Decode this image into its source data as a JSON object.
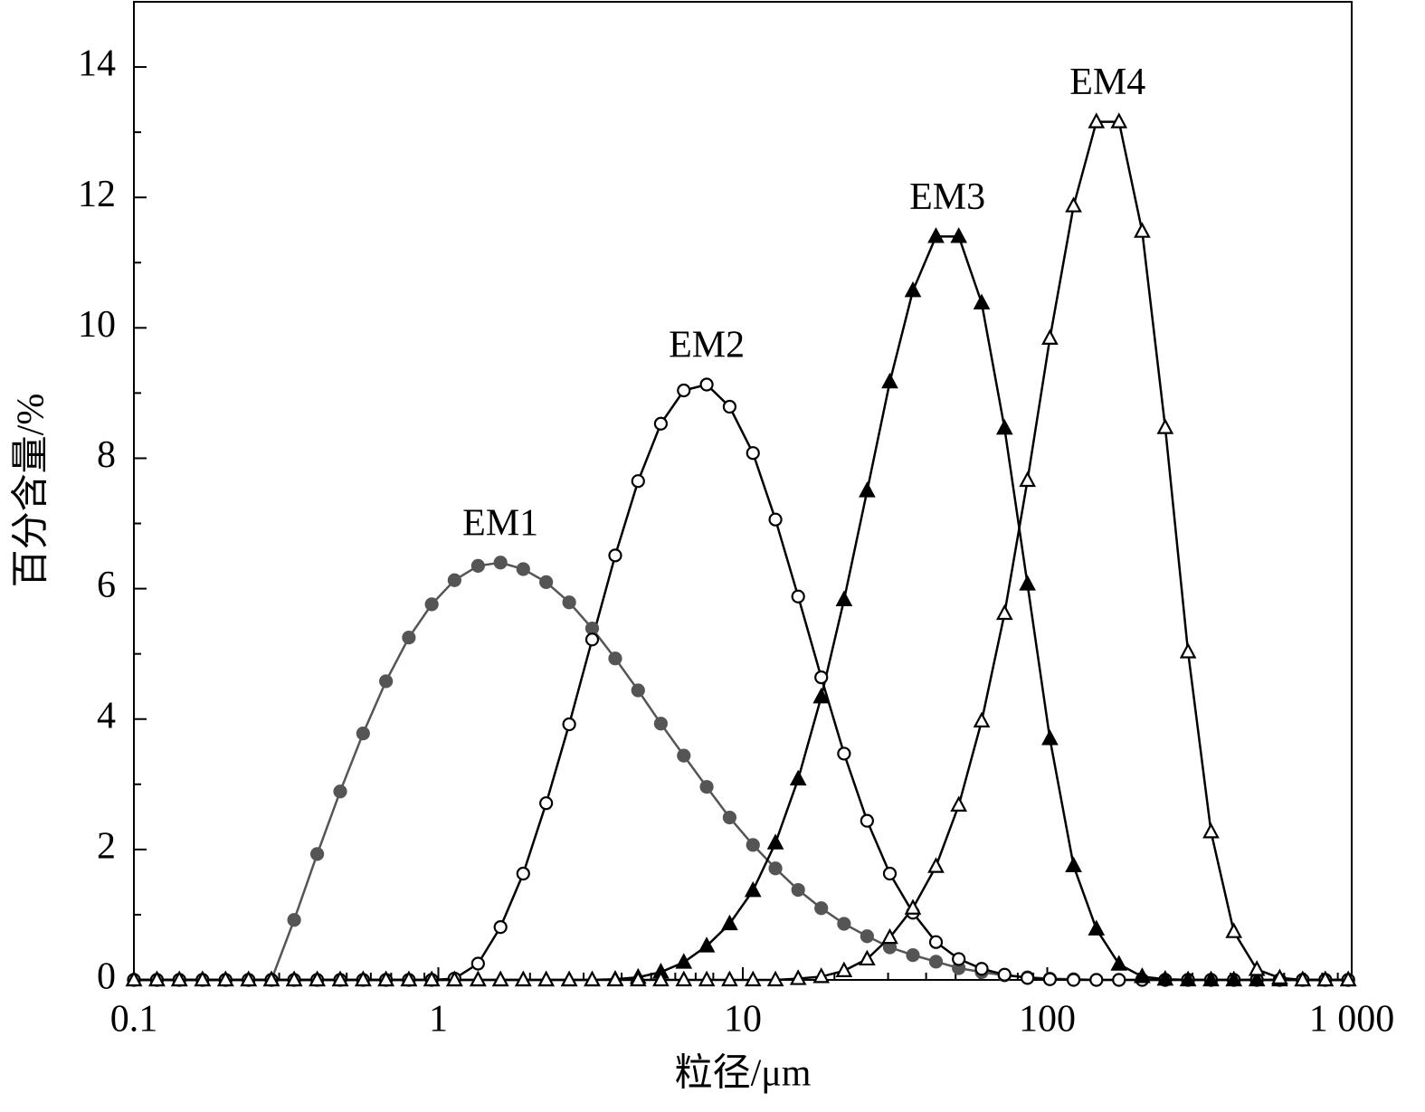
{
  "chart_data": {
    "type": "line",
    "x_label": "粒径/μm",
    "y_label": "百分含量/%",
    "x": [
      0.1,
      0.119,
      0.141,
      0.168,
      0.2,
      0.238,
      0.283,
      0.336,
      0.4,
      0.476,
      0.566,
      0.673,
      0.8,
      0.951,
      1.13,
      1.35,
      1.6,
      1.9,
      2.26,
      2.69,
      3.2,
      3.81,
      4.53,
      5.38,
      6.4,
      7.61,
      9.05,
      10.8,
      12.8,
      15.2,
      18.1,
      21.5,
      25.6,
      30.4,
      36.2,
      43.1,
      51.2,
      60.9,
      72.4,
      86.1,
      102,
      122,
      145,
      172,
      205,
      244,
      290,
      345,
      410,
      488,
      580,
      690,
      819,
      974
    ],
    "x_log": true,
    "xlim": [
      0.1,
      1000
    ],
    "xticks": [
      0.1,
      1,
      10,
      100,
      {
        "value": 1000,
        "label": "1 000"
      }
    ],
    "ylim": [
      0,
      15
    ],
    "yticks": [
      0,
      2,
      4,
      6,
      8,
      10,
      12,
      14
    ],
    "series": [
      {
        "name": "EM1",
        "color": "#555555",
        "marker": "circle",
        "filled": true,
        "values": [
          0,
          0,
          0,
          0,
          0,
          0,
          0,
          0.92,
          1.93,
          2.89,
          3.78,
          4.58,
          5.25,
          5.76,
          6.13,
          6.35,
          6.4,
          6.3,
          6.1,
          5.79,
          5.39,
          4.93,
          4.44,
          3.93,
          3.44,
          2.96,
          2.49,
          2.07,
          1.71,
          1.38,
          1.1,
          0.86,
          0.67,
          0.5,
          0.38,
          0.28,
          0.18,
          0.12,
          0.07,
          0.04,
          0.02,
          0.01,
          0,
          0,
          0,
          0,
          0,
          0,
          0,
          0,
          0,
          0,
          0,
          0
        ]
      },
      {
        "name": "EM2",
        "color": "#000000",
        "marker": "circle",
        "filled": false,
        "values": [
          0,
          0,
          0,
          0,
          0,
          0,
          0,
          0,
          0,
          0,
          0,
          0,
          0,
          0,
          0.02,
          0.25,
          0.81,
          1.63,
          2.71,
          3.92,
          5.22,
          6.51,
          7.65,
          8.53,
          9.04,
          9.13,
          8.79,
          8.08,
          7.06,
          5.88,
          4.64,
          3.47,
          2.44,
          1.63,
          1.03,
          0.58,
          0.32,
          0.17,
          0.08,
          0.03,
          0.01,
          0,
          0,
          0,
          0,
          0,
          0,
          0,
          0,
          0,
          0,
          0,
          0,
          0
        ]
      },
      {
        "name": "EM3",
        "color": "#000000",
        "marker": "triangle",
        "filled": true,
        "values": [
          0,
          0,
          0,
          0,
          0,
          0,
          0,
          0,
          0,
          0,
          0,
          0,
          0,
          0,
          0,
          0,
          0,
          0,
          0,
          0,
          0,
          0.01,
          0.04,
          0.12,
          0.27,
          0.52,
          0.86,
          1.37,
          2.1,
          3.08,
          4.34,
          5.83,
          7.5,
          9.17,
          10.57,
          11.4,
          11.4,
          10.38,
          8.46,
          6.07,
          3.7,
          1.75,
          0.78,
          0.24,
          0.05,
          0.01,
          0,
          0,
          0,
          0,
          0,
          0,
          0,
          0
        ]
      },
      {
        "name": "EM4",
        "color": "#000000",
        "marker": "triangle",
        "filled": false,
        "values": [
          0,
          0,
          0,
          0,
          0,
          0,
          0,
          0,
          0,
          0,
          0,
          0,
          0,
          0,
          0,
          0,
          0,
          0,
          0,
          0,
          0,
          0,
          0,
          0,
          0,
          0,
          0,
          0,
          0,
          0.02,
          0.05,
          0.14,
          0.32,
          0.65,
          1.1,
          1.74,
          2.68,
          3.97,
          5.62,
          7.66,
          9.84,
          11.87,
          13.16,
          13.16,
          11.48,
          8.47,
          5.03,
          2.27,
          0.74,
          0.16,
          0.03,
          0,
          0,
          0
        ]
      }
    ]
  }
}
